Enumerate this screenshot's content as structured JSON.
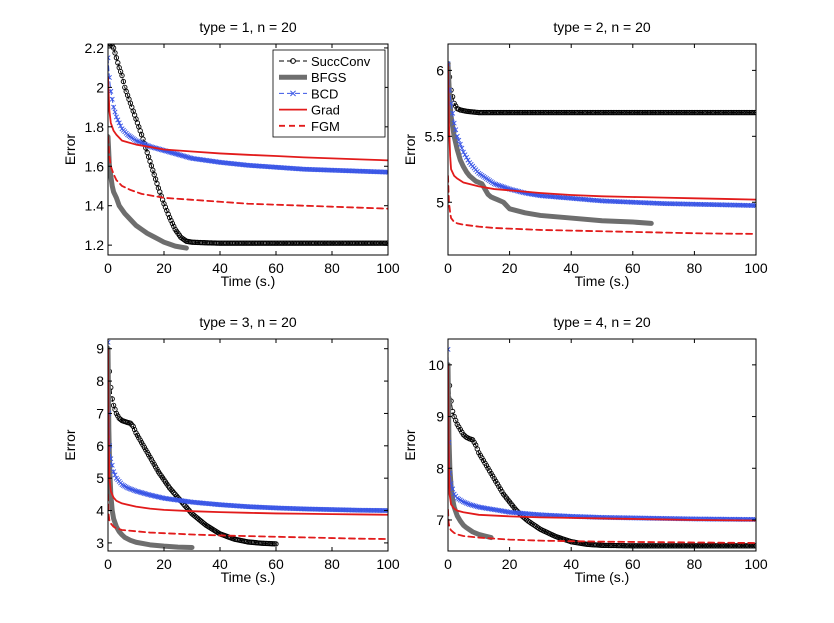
{
  "chart_data": [
    {
      "type": "line",
      "title": "type = 1, n = 20",
      "xlabel": "Time (s.)",
      "ylabel": "Error",
      "xlim": [
        0,
        100
      ],
      "ylim": [
        1.15,
        2.22
      ],
      "xticks": [
        0,
        20,
        40,
        60,
        80,
        100
      ],
      "yticks": [
        1.2,
        1.4,
        1.6,
        1.8,
        2,
        2.2
      ],
      "xtick_labels": [
        "0",
        "20",
        "40",
        "60",
        "80",
        "100"
      ],
      "ytick_labels": [
        "1.2",
        "1.4",
        "1.6",
        "1.8",
        "2",
        "2.2"
      ],
      "legend": true,
      "series": [
        {
          "name": "SuccConv",
          "color": "#000000",
          "style": "succconv",
          "x": [
            0,
            1,
            2,
            3,
            4,
            5,
            6,
            8,
            10,
            12,
            14,
            16,
            18,
            20,
            22,
            24,
            26,
            28,
            30,
            35,
            40,
            50,
            60,
            80,
            100
          ],
          "y": [
            2.22,
            2.22,
            2.2,
            2.15,
            2.1,
            2.06,
            2.0,
            1.92,
            1.84,
            1.76,
            1.67,
            1.58,
            1.49,
            1.41,
            1.34,
            1.28,
            1.24,
            1.22,
            1.215,
            1.212,
            1.21,
            1.21,
            1.21,
            1.21,
            1.21
          ]
        },
        {
          "name": "BFGS",
          "color": "#6e6e6e",
          "style": "bfgs",
          "x": [
            0,
            0.5,
            1,
            1.5,
            2,
            3,
            4,
            6,
            8,
            10,
            12,
            14,
            16,
            18,
            20,
            22,
            24,
            26,
            28
          ],
          "y": [
            1.75,
            1.6,
            1.55,
            1.5,
            1.47,
            1.44,
            1.4,
            1.36,
            1.33,
            1.3,
            1.28,
            1.26,
            1.245,
            1.23,
            1.215,
            1.205,
            1.195,
            1.19,
            1.185
          ]
        },
        {
          "name": "BCD",
          "color": "#3a56e6",
          "style": "bcd",
          "x": [
            0,
            0.5,
            1,
            2,
            3,
            5,
            7,
            10,
            15,
            20,
            25,
            30,
            40,
            50,
            60,
            70,
            80,
            90,
            100
          ],
          "y": [
            2.15,
            2.05,
            1.98,
            1.9,
            1.85,
            1.79,
            1.76,
            1.73,
            1.7,
            1.68,
            1.66,
            1.64,
            1.62,
            1.605,
            1.595,
            1.585,
            1.58,
            1.575,
            1.57
          ]
        },
        {
          "name": "Grad",
          "color": "#e21b1b",
          "style": "grad",
          "x": [
            0,
            0.5,
            1,
            2,
            3,
            5,
            10,
            20,
            30,
            40,
            50,
            60,
            70,
            80,
            90,
            100
          ],
          "y": [
            2.05,
            1.88,
            1.82,
            1.78,
            1.76,
            1.73,
            1.71,
            1.685,
            1.675,
            1.665,
            1.658,
            1.652,
            1.645,
            1.64,
            1.635,
            1.63
          ]
        },
        {
          "name": "FGM",
          "color": "#e21b1b",
          "style": "fgm",
          "x": [
            0,
            0.5,
            1,
            2,
            3,
            5,
            8,
            12,
            20,
            30,
            40,
            50,
            60,
            70,
            80,
            90,
            100
          ],
          "y": [
            1.75,
            1.65,
            1.6,
            1.56,
            1.53,
            1.5,
            1.48,
            1.46,
            1.44,
            1.43,
            1.42,
            1.41,
            1.405,
            1.4,
            1.395,
            1.39,
            1.385
          ]
        }
      ]
    },
    {
      "type": "line",
      "title": "type = 2, n = 20",
      "xlabel": "Time (s.)",
      "ylabel": "Error",
      "xlim": [
        0,
        100
      ],
      "ylim": [
        4.6,
        6.2
      ],
      "xticks": [
        0,
        20,
        40,
        60,
        80,
        100
      ],
      "yticks": [
        5,
        5.5,
        6
      ],
      "xtick_labels": [
        "0",
        "20",
        "40",
        "60",
        "80",
        "100"
      ],
      "ytick_labels": [
        "5",
        "5.5",
        "6"
      ],
      "legend": false,
      "series": [
        {
          "name": "SuccConv",
          "color": "#000000",
          "style": "succconv",
          "x": [
            0,
            0.5,
            1,
            2,
            3,
            4,
            6,
            8,
            10,
            15,
            20,
            30,
            40,
            50,
            60,
            70,
            80,
            90,
            100
          ],
          "y": [
            6.05,
            5.95,
            5.85,
            5.75,
            5.71,
            5.7,
            5.69,
            5.685,
            5.68,
            5.68,
            5.68,
            5.68,
            5.68,
            5.68,
            5.68,
            5.68,
            5.68,
            5.68,
            5.68
          ]
        },
        {
          "name": "BFGS",
          "color": "#6e6e6e",
          "style": "bfgs",
          "x": [
            0,
            0.5,
            1,
            2,
            3,
            4,
            5,
            6,
            7,
            8,
            9,
            10,
            11,
            12,
            13,
            14,
            15,
            16,
            18,
            20,
            25,
            30,
            40,
            50,
            60,
            66
          ],
          "y": [
            6.05,
            5.8,
            5.65,
            5.5,
            5.4,
            5.32,
            5.27,
            5.23,
            5.2,
            5.18,
            5.16,
            5.15,
            5.14,
            5.1,
            5.06,
            5.04,
            5.03,
            5.02,
            5.0,
            4.95,
            4.92,
            4.9,
            4.88,
            4.86,
            4.85,
            4.84
          ]
        },
        {
          "name": "BCD",
          "color": "#3a56e6",
          "style": "bcd",
          "x": [
            0,
            0.5,
            1,
            2,
            3,
            5,
            7,
            10,
            15,
            20,
            25,
            30,
            40,
            50,
            60,
            70,
            80,
            90,
            100
          ],
          "y": [
            6.05,
            5.85,
            5.75,
            5.6,
            5.5,
            5.38,
            5.3,
            5.22,
            5.14,
            5.1,
            5.07,
            5.05,
            5.03,
            5.01,
            5.0,
            4.99,
            4.985,
            4.98,
            4.975
          ]
        },
        {
          "name": "Grad",
          "color": "#e21b1b",
          "style": "grad",
          "x": [
            0,
            0.3,
            0.7,
            1,
            2,
            3,
            5,
            10,
            15,
            20,
            30,
            40,
            50,
            60,
            70,
            80,
            90,
            100
          ],
          "y": [
            6.05,
            5.6,
            5.35,
            5.25,
            5.2,
            5.18,
            5.15,
            5.12,
            5.1,
            5.09,
            5.07,
            5.055,
            5.045,
            5.04,
            5.035,
            5.03,
            5.025,
            5.02
          ]
        },
        {
          "name": "FGM",
          "color": "#e21b1b",
          "style": "fgm",
          "x": [
            0,
            0.3,
            0.7,
            1,
            2,
            3,
            5,
            10,
            15,
            20,
            30,
            40,
            50,
            60,
            70,
            80,
            90,
            100
          ],
          "y": [
            5.2,
            5.0,
            4.92,
            4.88,
            4.85,
            4.84,
            4.83,
            4.815,
            4.805,
            4.8,
            4.79,
            4.785,
            4.78,
            4.775,
            4.77,
            4.765,
            4.762,
            4.76
          ]
        }
      ]
    },
    {
      "type": "line",
      "title": "type = 3, n = 20",
      "xlabel": "Time (s.)",
      "ylabel": "Error",
      "xlim": [
        0,
        100
      ],
      "ylim": [
        2.75,
        9.3
      ],
      "xticks": [
        0,
        20,
        40,
        60,
        80,
        100
      ],
      "yticks": [
        3,
        4,
        5,
        6,
        7,
        8,
        9
      ],
      "xtick_labels": [
        "0",
        "20",
        "40",
        "60",
        "80",
        "100"
      ],
      "ytick_labels": [
        "3",
        "4",
        "5",
        "6",
        "7",
        "8",
        "9"
      ],
      "legend": false,
      "series": [
        {
          "name": "SuccConv",
          "color": "#000000",
          "style": "succconv",
          "x": [
            0,
            0.5,
            1,
            1.5,
            2,
            3,
            4,
            5,
            6,
            7,
            8,
            9,
            10,
            12,
            14,
            16,
            18,
            20,
            22,
            24,
            26,
            28,
            30,
            35,
            40,
            45,
            50,
            55,
            60
          ],
          "y": [
            9.0,
            8.3,
            7.8,
            7.45,
            7.25,
            7.0,
            6.85,
            6.78,
            6.75,
            6.72,
            6.7,
            6.6,
            6.4,
            6.1,
            5.8,
            5.5,
            5.2,
            4.95,
            4.7,
            4.5,
            4.3,
            4.1,
            3.9,
            3.55,
            3.28,
            3.12,
            3.03,
            2.99,
            2.97
          ]
        },
        {
          "name": "BFGS",
          "color": "#6e6e6e",
          "style": "bfgs",
          "x": [
            0,
            0.3,
            0.6,
            1,
            1.5,
            2,
            3,
            4,
            5,
            6,
            8,
            10,
            15,
            20,
            25,
            30
          ],
          "y": [
            9.0,
            6.5,
            5.3,
            4.5,
            4.0,
            3.75,
            3.5,
            3.35,
            3.25,
            3.17,
            3.08,
            3.02,
            2.94,
            2.9,
            2.87,
            2.86
          ]
        },
        {
          "name": "BCD",
          "color": "#3a56e6",
          "style": "bcd",
          "x": [
            0,
            0.3,
            0.6,
            1,
            2,
            3,
            5,
            7,
            10,
            15,
            20,
            30,
            40,
            50,
            60,
            70,
            80,
            90,
            100
          ],
          "y": [
            9.2,
            7.0,
            6.0,
            5.6,
            5.2,
            5.0,
            4.8,
            4.7,
            4.6,
            4.48,
            4.38,
            4.26,
            4.18,
            4.12,
            4.08,
            4.05,
            4.03,
            4.01,
            4.0
          ]
        },
        {
          "name": "Grad",
          "color": "#e21b1b",
          "style": "grad",
          "x": [
            0,
            0.2,
            0.5,
            1,
            2,
            3,
            5,
            10,
            15,
            20,
            30,
            40,
            50,
            60,
            70,
            80,
            90,
            100
          ],
          "y": [
            9.0,
            6.5,
            5.0,
            4.6,
            4.4,
            4.3,
            4.22,
            4.12,
            4.06,
            4.02,
            3.98,
            3.95,
            3.93,
            3.91,
            3.9,
            3.89,
            3.88,
            3.87
          ]
        },
        {
          "name": "FGM",
          "color": "#e21b1b",
          "style": "fgm",
          "x": [
            0,
            0.2,
            0.5,
            1,
            2,
            3,
            5,
            10,
            15,
            20,
            30,
            40,
            50,
            60,
            70,
            80,
            90,
            100
          ],
          "y": [
            4.5,
            3.9,
            3.7,
            3.6,
            3.5,
            3.45,
            3.4,
            3.36,
            3.32,
            3.3,
            3.26,
            3.23,
            3.21,
            3.19,
            3.17,
            3.15,
            3.13,
            3.12
          ]
        }
      ]
    },
    {
      "type": "line",
      "title": "type = 4, n = 20",
      "xlabel": "Time (s.)",
      "ylabel": "Error",
      "xlim": [
        0,
        100
      ],
      "ylim": [
        6.4,
        10.5
      ],
      "xticks": [
        0,
        20,
        40,
        60,
        80,
        100
      ],
      "yticks": [
        7,
        8,
        9,
        10
      ],
      "xtick_labels": [
        "0",
        "20",
        "40",
        "60",
        "80",
        "100"
      ],
      "ytick_labels": [
        "7",
        "8",
        "9",
        "10"
      ],
      "legend": false,
      "series": [
        {
          "name": "SuccConv",
          "color": "#000000",
          "style": "succconv",
          "x": [
            0,
            0.5,
            1,
            1.5,
            2,
            3,
            4,
            5,
            6,
            7,
            8,
            9,
            10,
            12,
            14,
            16,
            18,
            20,
            22,
            24,
            26,
            28,
            30,
            35,
            40,
            45,
            50,
            60,
            70,
            80,
            90,
            100
          ],
          "y": [
            10.0,
            9.6,
            9.3,
            9.1,
            9.0,
            8.85,
            8.75,
            8.65,
            8.6,
            8.57,
            8.55,
            8.45,
            8.3,
            8.1,
            7.9,
            7.7,
            7.5,
            7.35,
            7.2,
            7.08,
            6.98,
            6.9,
            6.82,
            6.68,
            6.58,
            6.53,
            6.51,
            6.5,
            6.5,
            6.5,
            6.5,
            6.5
          ]
        },
        {
          "name": "BFGS",
          "color": "#6e6e6e",
          "style": "bfgs",
          "x": [
            0,
            0.3,
            0.6,
            1,
            1.5,
            2,
            3,
            4,
            5,
            6,
            8,
            10,
            12,
            14
          ],
          "y": [
            10.0,
            8.6,
            8.0,
            7.65,
            7.4,
            7.25,
            7.08,
            6.98,
            6.9,
            6.85,
            6.77,
            6.72,
            6.69,
            6.66
          ]
        },
        {
          "name": "BCD",
          "color": "#3a56e6",
          "style": "bcd",
          "x": [
            0,
            0.3,
            0.6,
            1,
            2,
            3,
            5,
            7,
            10,
            15,
            20,
            30,
            40,
            50,
            60,
            70,
            80,
            90,
            100
          ],
          "y": [
            10.3,
            8.5,
            7.9,
            7.7,
            7.5,
            7.42,
            7.35,
            7.3,
            7.25,
            7.2,
            7.15,
            7.1,
            7.07,
            7.05,
            7.04,
            7.03,
            7.02,
            7.015,
            7.01
          ]
        },
        {
          "name": "Grad",
          "color": "#e21b1b",
          "style": "grad",
          "x": [
            0,
            0.2,
            0.5,
            1,
            2,
            3,
            5,
            10,
            20,
            30,
            40,
            50,
            60,
            70,
            80,
            90,
            100
          ],
          "y": [
            10.0,
            8.5,
            7.5,
            7.3,
            7.22,
            7.18,
            7.15,
            7.1,
            7.07,
            7.05,
            7.04,
            7.03,
            7.02,
            7.01,
            7.0,
            6.995,
            6.99
          ]
        },
        {
          "name": "FGM",
          "color": "#e21b1b",
          "style": "fgm",
          "x": [
            0,
            0.2,
            0.5,
            1,
            2,
            3,
            5,
            10,
            15,
            20,
            30,
            40,
            50,
            60,
            70,
            80,
            90,
            100
          ],
          "y": [
            7.2,
            6.95,
            6.85,
            6.8,
            6.75,
            6.72,
            6.69,
            6.66,
            6.64,
            6.62,
            6.6,
            6.59,
            6.58,
            6.575,
            6.57,
            6.565,
            6.56,
            6.555
          ]
        }
      ]
    }
  ]
}
